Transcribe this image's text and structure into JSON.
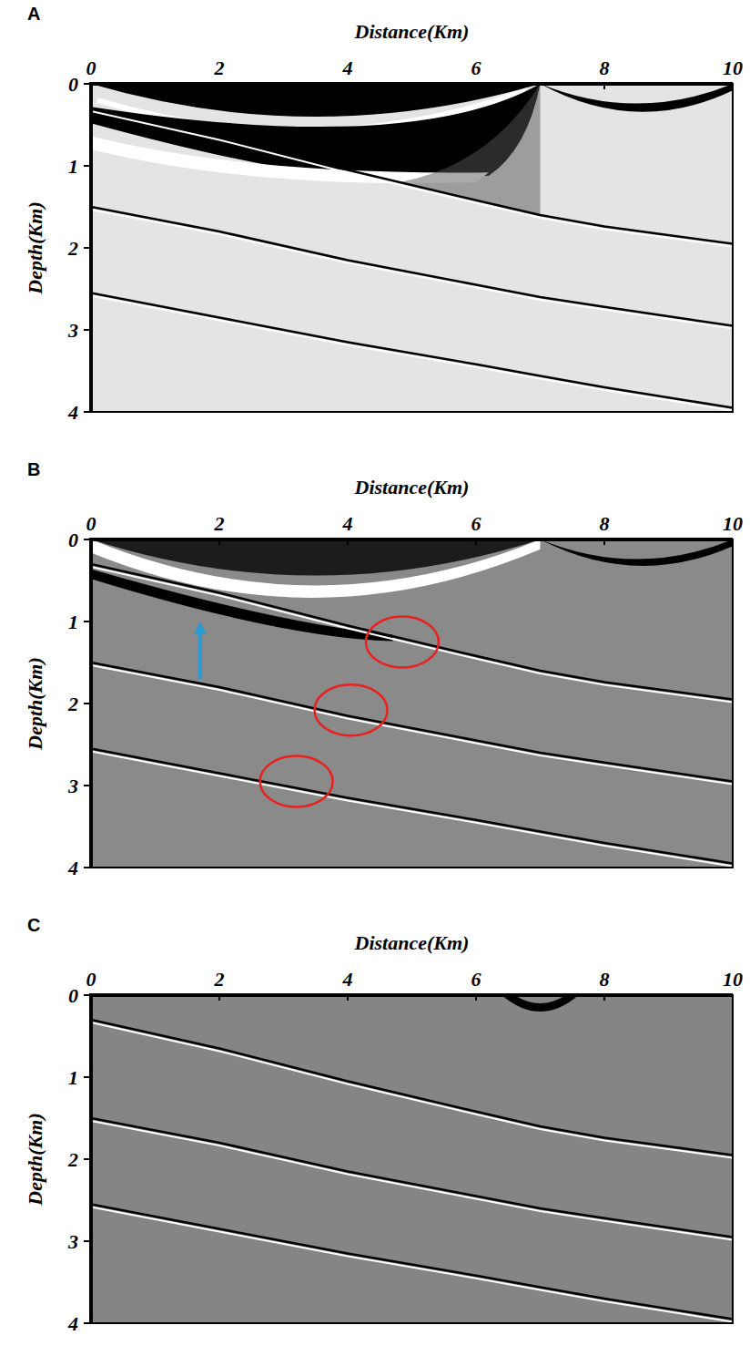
{
  "chart_data": [
    {
      "type": "image",
      "panel_label": "A",
      "x_label": "Distance(Km)",
      "y_label": "Depth(Km)",
      "xlim": [
        0,
        10
      ],
      "ylim": [
        4,
        0
      ],
      "xticks": [
        0,
        2,
        4,
        6,
        8,
        10
      ],
      "yticks": [
        0,
        1,
        2,
        3,
        4
      ],
      "x": [
        0,
        2,
        4,
        6,
        7,
        8,
        10
      ],
      "series": [
        {
          "values": [
            0.3,
            0.65,
            1.05,
            1.42,
            1.6,
            1.74,
            1.95
          ]
        },
        {
          "values": [
            1.5,
            1.8,
            2.15,
            2.45,
            2.6,
            2.72,
            2.95
          ]
        },
        {
          "values": [
            2.55,
            2.85,
            3.15,
            3.42,
            3.56,
            3.7,
            3.95
          ]
        }
      ]
    },
    {
      "type": "image",
      "panel_label": "B",
      "x_label": "Distance(Km)",
      "y_label": "Depth(Km)",
      "xlim": [
        0,
        10
      ],
      "ylim": [
        4,
        0
      ],
      "xticks": [
        0,
        2,
        4,
        6,
        8,
        10
      ],
      "yticks": [
        0,
        1,
        2,
        3,
        4
      ],
      "x": [
        0,
        2,
        4,
        6,
        7,
        8,
        10
      ],
      "series": [
        {
          "values": [
            0.3,
            0.65,
            1.05,
            1.42,
            1.6,
            1.74,
            1.95
          ]
        },
        {
          "values": [
            1.5,
            1.8,
            2.15,
            2.45,
            2.6,
            2.72,
            2.95
          ]
        },
        {
          "values": [
            2.55,
            2.85,
            3.15,
            3.42,
            3.56,
            3.7,
            3.95
          ]
        }
      ],
      "circles": [
        {
          "x": 4.85,
          "y": 1.25
        },
        {
          "x": 4.05,
          "y": 2.08
        },
        {
          "x": 3.2,
          "y": 2.95
        }
      ],
      "arrow": {
        "x": 1.7,
        "y_from": 1.7,
        "y_to": 1.0
      }
    },
    {
      "type": "image",
      "panel_label": "C",
      "x_label": "Distance(Km)",
      "y_label": "Depth(Km)",
      "xlim": [
        0,
        10
      ],
      "ylim": [
        4,
        0
      ],
      "xticks": [
        0,
        2,
        4,
        6,
        8,
        10
      ],
      "yticks": [
        0,
        1,
        2,
        3,
        4
      ],
      "x": [
        0,
        2,
        4,
        6,
        7,
        8,
        10
      ],
      "series": [
        {
          "values": [
            0.3,
            0.65,
            1.05,
            1.42,
            1.6,
            1.74,
            1.95
          ]
        },
        {
          "values": [
            1.5,
            1.8,
            2.15,
            2.45,
            2.6,
            2.72,
            2.95
          ]
        },
        {
          "values": [
            2.55,
            2.85,
            3.15,
            3.42,
            3.56,
            3.7,
            3.95
          ]
        }
      ]
    }
  ]
}
